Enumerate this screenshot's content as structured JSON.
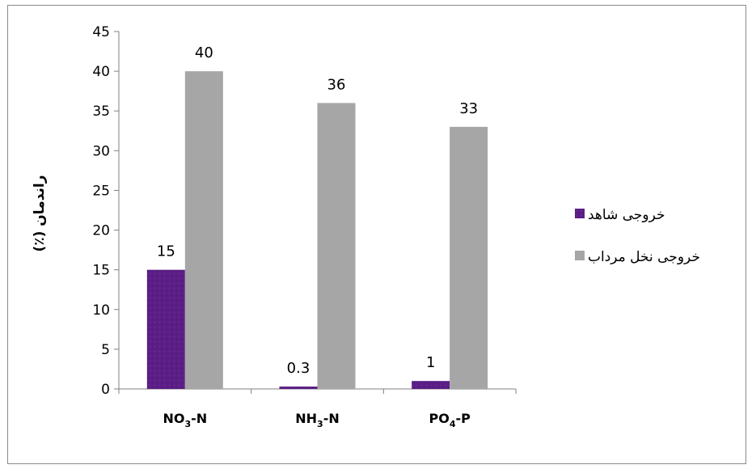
{
  "chart_data": {
    "type": "bar",
    "title": "",
    "xlabel": "",
    "ylabel": "راندمان (٪)",
    "ylim": [
      0,
      45
    ],
    "yticks": [
      "0",
      "5",
      "10",
      "15",
      "20",
      "25",
      "30",
      "35",
      "40",
      "45"
    ],
    "grid": false,
    "legend_position": "right",
    "categories": [
      {
        "base": "NO",
        "sub": "3",
        "rest": "-N"
      },
      {
        "base": "NH",
        "sub": "3",
        "rest": "-N"
      },
      {
        "base": "PO",
        "sub": "4",
        "rest": "-P"
      }
    ],
    "series": [
      {
        "name": "خروجی شاهد",
        "color": "#5b1e86",
        "values": [
          15,
          0.3,
          1
        ],
        "labels": [
          "15",
          "0.3",
          "1"
        ]
      },
      {
        "name": "خروجی نخل مرداب",
        "color": "#a6a6a6",
        "values": [
          40,
          36,
          33
        ],
        "labels": [
          "40",
          "36",
          "33"
        ]
      }
    ]
  }
}
